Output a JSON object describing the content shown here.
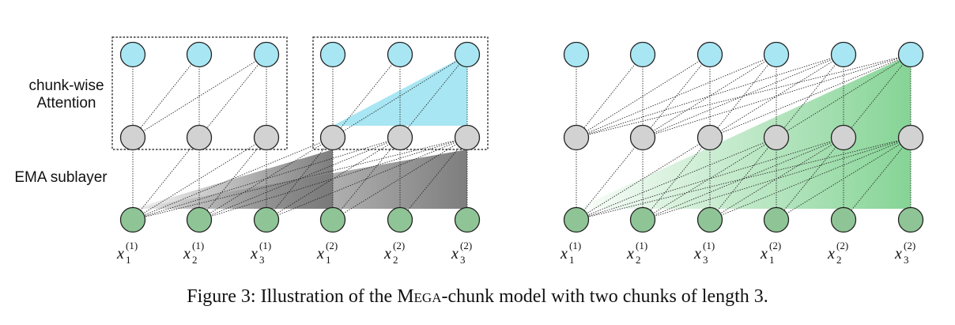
{
  "labels": {
    "attention": "chunk-wise Attention",
    "ema": "EMA sublayer"
  },
  "token_labels": [
    {
      "base": "x",
      "sub": "1",
      "sup": "(1)"
    },
    {
      "base": "x",
      "sub": "2",
      "sup": "(1)"
    },
    {
      "base": "x",
      "sub": "3",
      "sup": "(1)"
    },
    {
      "base": "x",
      "sub": "1",
      "sup": "(2)"
    },
    {
      "base": "x",
      "sub": "2",
      "sup": "(2)"
    },
    {
      "base": "x",
      "sub": "3",
      "sup": "(2)"
    }
  ],
  "caption": {
    "prefix": "Figure 3: Illustration of the ",
    "model": "Mega",
    "suffix": "-chunk model with two chunks of length 3."
  },
  "colors": {
    "top_node": "#a8e6f3",
    "middle_node": "#d2d2d2",
    "bottom_node": "#8fc596",
    "attention_fill": "#a8e6f3",
    "ema_fill": "#777777",
    "global_fill": "#78cf8a"
  }
}
